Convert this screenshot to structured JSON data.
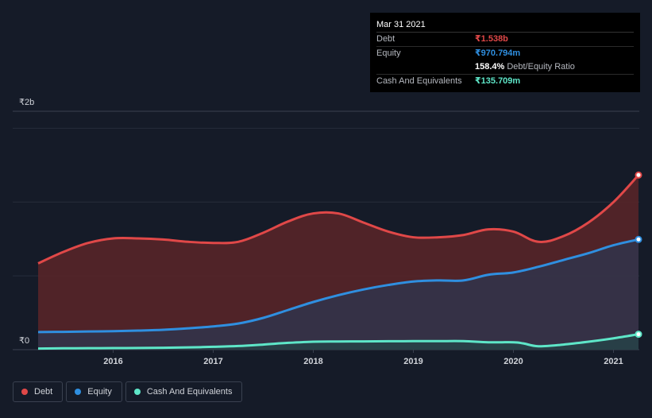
{
  "chart_data": {
    "type": "area",
    "currency_symbol": "₹",
    "y_unit": "billions",
    "ylim": [
      0,
      2.1
    ],
    "y_ticks": [
      {
        "value": 2,
        "label": "₹2b"
      },
      {
        "value": 0,
        "label": "₹0"
      }
    ],
    "x_ticks": [
      2016,
      2017,
      2018,
      2019,
      2020,
      2021
    ],
    "xlim": [
      2015.0,
      2021.25
    ],
    "series": [
      {
        "name": "Debt",
        "color": "#e04848",
        "fill": "#5a2428",
        "x": [
          2015.25,
          2015.5,
          2015.75,
          2016.0,
          2016.25,
          2016.5,
          2016.75,
          2017.0,
          2017.25,
          2017.5,
          2017.75,
          2018.0,
          2018.25,
          2018.5,
          2018.75,
          2019.0,
          2019.25,
          2019.5,
          2019.75,
          2020.0,
          2020.25,
          2020.5,
          2020.75,
          2021.0,
          2021.25
        ],
        "values": [
          0.76,
          0.86,
          0.94,
          0.98,
          0.98,
          0.97,
          0.95,
          0.94,
          0.95,
          1.03,
          1.13,
          1.2,
          1.2,
          1.12,
          1.04,
          0.99,
          0.99,
          1.01,
          1.06,
          1.04,
          0.95,
          1.0,
          1.12,
          1.3,
          1.538
        ]
      },
      {
        "name": "Equity",
        "color": "#2f8fe0",
        "fill": "#2c3750",
        "x": [
          2015.25,
          2015.5,
          2015.75,
          2016.0,
          2016.25,
          2016.5,
          2016.75,
          2017.0,
          2017.25,
          2017.5,
          2017.75,
          2018.0,
          2018.25,
          2018.5,
          2018.75,
          2019.0,
          2019.25,
          2019.5,
          2019.75,
          2020.0,
          2020.25,
          2020.5,
          2020.75,
          2021.0,
          2021.25
        ],
        "values": [
          0.155,
          0.157,
          0.16,
          0.163,
          0.168,
          0.175,
          0.188,
          0.205,
          0.23,
          0.28,
          0.35,
          0.42,
          0.48,
          0.53,
          0.57,
          0.6,
          0.61,
          0.61,
          0.66,
          0.68,
          0.73,
          0.79,
          0.85,
          0.92,
          0.971
        ]
      },
      {
        "name": "Cash And Equivalents",
        "color": "#5ee6c8",
        "fill": "#1f4a48",
        "x": [
          2015.25,
          2015.5,
          2015.75,
          2016.0,
          2016.25,
          2016.5,
          2016.75,
          2017.0,
          2017.25,
          2017.5,
          2017.75,
          2018.0,
          2018.25,
          2018.5,
          2018.75,
          2019.0,
          2019.25,
          2019.5,
          2019.75,
          2020.0,
          2020.1,
          2020.25,
          2020.5,
          2020.75,
          2021.0,
          2021.25
        ],
        "values": [
          0.01,
          0.012,
          0.013,
          0.014,
          0.015,
          0.017,
          0.02,
          0.025,
          0.032,
          0.045,
          0.06,
          0.07,
          0.072,
          0.073,
          0.074,
          0.075,
          0.075,
          0.075,
          0.065,
          0.065,
          0.055,
          0.03,
          0.045,
          0.07,
          0.1,
          0.136
        ]
      }
    ]
  },
  "tooltip": {
    "date": "Mar 31 2021",
    "debt_label": "Debt",
    "debt_value": "₹1.538b",
    "equity_label": "Equity",
    "equity_value": "₹970.794m",
    "ratio_value": "158.4%",
    "ratio_label": "Debt/Equity Ratio",
    "cash_label": "Cash And Equivalents",
    "cash_value": "₹135.709m"
  },
  "legend": [
    {
      "label": "Debt",
      "color": "#e04848"
    },
    {
      "label": "Equity",
      "color": "#2f8fe0"
    },
    {
      "label": "Cash And Equivalents",
      "color": "#5ee6c8"
    }
  ],
  "colors": {
    "background": "#151b28",
    "grid": "#2a3140",
    "axis": "#d0d3d9"
  }
}
